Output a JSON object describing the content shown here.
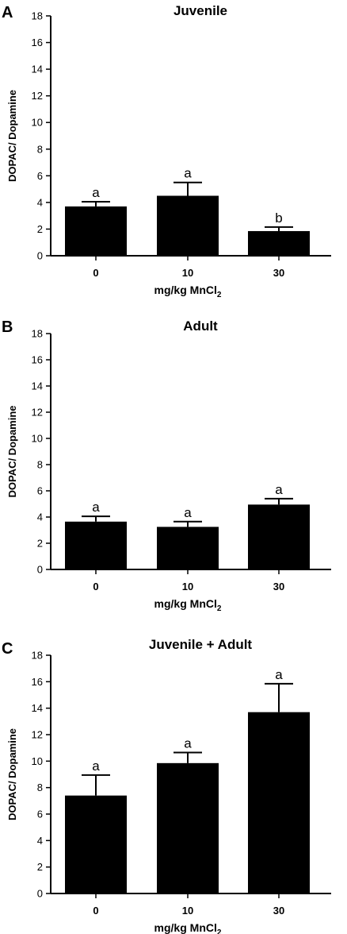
{
  "chart_data": [
    {
      "type": "bar",
      "panel": "A",
      "title": "Juvenile",
      "categories": [
        "0",
        "10",
        "30"
      ],
      "values": [
        3.7,
        4.5,
        1.85
      ],
      "errors": [
        0.35,
        1.0,
        0.3
      ],
      "significance": [
        "a",
        "a",
        "b"
      ],
      "xlabel": "mg/kg MnCl",
      "xlabel_sub": "2",
      "ylabel": "DOPAC/ Dopamine",
      "ylim": [
        0,
        18
      ],
      "yticks": [
        0,
        2,
        4,
        6,
        8,
        10,
        12,
        14,
        16,
        18
      ],
      "bar_color": "#000000"
    },
    {
      "type": "bar",
      "panel": "B",
      "title": "Adult",
      "categories": [
        "0",
        "10",
        "30"
      ],
      "values": [
        3.65,
        3.25,
        4.95
      ],
      "errors": [
        0.4,
        0.4,
        0.45
      ],
      "significance": [
        "a",
        "a",
        "a"
      ],
      "xlabel": "mg/kg MnCl",
      "xlabel_sub": "2",
      "ylabel": "DOPAC/ Dopamine",
      "ylim": [
        0,
        18
      ],
      "yticks": [
        0,
        2,
        4,
        6,
        8,
        10,
        12,
        14,
        16,
        18
      ],
      "bar_color": "#000000"
    },
    {
      "type": "bar",
      "panel": "C",
      "title": "Juvenile + Adult",
      "categories": [
        "0",
        "10",
        "30"
      ],
      "values": [
        7.4,
        9.85,
        13.7
      ],
      "errors": [
        1.55,
        0.8,
        2.15
      ],
      "significance": [
        "a",
        "a",
        "a"
      ],
      "xlabel": "mg/kg MnCl",
      "xlabel_sub": "2",
      "ylabel": "DOPAC/ Dopamine",
      "ylim": [
        0,
        18
      ],
      "yticks": [
        0,
        2,
        4,
        6,
        8,
        10,
        12,
        14,
        16,
        18
      ],
      "bar_color": "#000000"
    }
  ]
}
